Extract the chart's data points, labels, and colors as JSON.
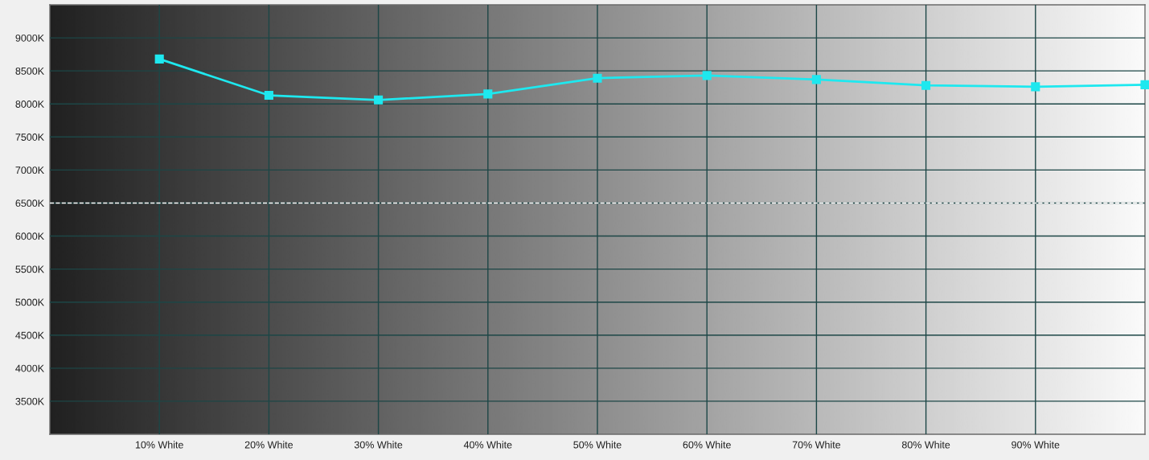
{
  "chart_data": {
    "type": "line",
    "x": [
      10,
      20,
      30,
      40,
      50,
      60,
      70,
      80,
      90,
      100
    ],
    "series": [
      {
        "color": "#1ee8ef",
        "values": [
          8680,
          8130,
          8060,
          8150,
          8390,
          8430,
          8370,
          8280,
          8260,
          8290
        ]
      }
    ],
    "xlim": [
      0,
      100
    ],
    "ylim": [
      3000,
      9500
    ],
    "xticks": [
      {
        "value": 10,
        "label": "10% White"
      },
      {
        "value": 20,
        "label": "20% White"
      },
      {
        "value": 30,
        "label": "30% White"
      },
      {
        "value": 40,
        "label": "40% White"
      },
      {
        "value": 50,
        "label": "50% White"
      },
      {
        "value": 60,
        "label": "60% White"
      },
      {
        "value": 70,
        "label": "70% White"
      },
      {
        "value": 80,
        "label": "80% White"
      },
      {
        "value": 90,
        "label": "90% White"
      }
    ],
    "yticks": [
      {
        "value": 3500,
        "label": "3500K"
      },
      {
        "value": 4000,
        "label": "4000K"
      },
      {
        "value": 4500,
        "label": "4500K"
      },
      {
        "value": 5000,
        "label": "5000K"
      },
      {
        "value": 5500,
        "label": "5500K"
      },
      {
        "value": 6000,
        "label": "6000K"
      },
      {
        "value": 6500,
        "label": "6500K"
      },
      {
        "value": 7000,
        "label": "7000K"
      },
      {
        "value": 7500,
        "label": "7500K"
      },
      {
        "value": 8000,
        "label": "8000K"
      },
      {
        "value": 8500,
        "label": "8500K"
      },
      {
        "value": 9000,
        "label": "9000K"
      }
    ],
    "grid": true,
    "marker": "square",
    "line_style": "solid",
    "ref_lines": [
      {
        "axis": "y",
        "value": 6500,
        "color": "#ffffff",
        "line_style": "dashed"
      }
    ]
  }
}
